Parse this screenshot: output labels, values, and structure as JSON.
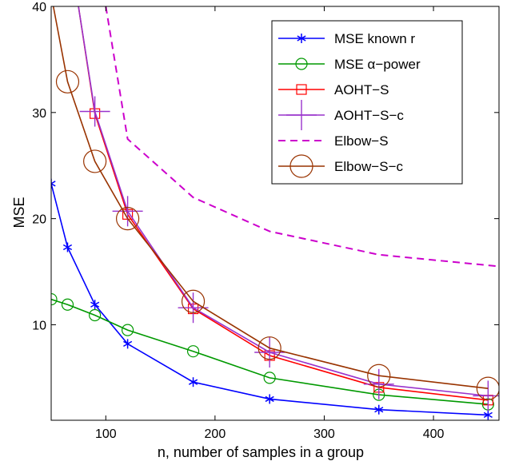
{
  "chart_data": {
    "type": "line",
    "title": "",
    "xlabel": "n, number of samples in a group",
    "ylabel": "MSE",
    "xlim": [
      50,
      460
    ],
    "ylim": [
      1,
      40
    ],
    "xticks": [
      100,
      200,
      300,
      400
    ],
    "yticks": [
      10,
      20,
      30,
      40
    ],
    "grid": false,
    "legend_position": "top-right",
    "x": [
      50,
      65,
      90,
      120,
      180,
      250,
      350,
      450
    ],
    "series": [
      {
        "name": "MSE known r",
        "color": "#0000ff",
        "line_style": "solid",
        "marker": "asterisk",
        "x": [
          50,
          65,
          90,
          120,
          180,
          250,
          350,
          450
        ],
        "values": [
          23.3,
          17.3,
          11.9,
          8.2,
          4.6,
          3.0,
          2.0,
          1.5
        ]
      },
      {
        "name": "MSE α−power",
        "color": "#009900",
        "line_style": "solid",
        "marker": "circle",
        "x": [
          50,
          65,
          90,
          120,
          180,
          250,
          350,
          450
        ],
        "values": [
          12.4,
          11.9,
          10.9,
          9.5,
          7.5,
          5.0,
          3.4,
          2.5
        ]
      },
      {
        "name": "AOHT−S",
        "color": "#ff0000",
        "line_style": "solid",
        "marker": "square",
        "x": [
          75,
          90,
          120,
          180,
          250,
          350,
          450
        ],
        "values": [
          40.0,
          29.9,
          20.4,
          11.5,
          7.1,
          4.1,
          2.9
        ],
        "marker_x": [
          90,
          120,
          180,
          250,
          350,
          450
        ],
        "marker_values": [
          29.9,
          20.4,
          11.5,
          7.1,
          4.1,
          2.9
        ]
      },
      {
        "name": "AOHT−S−c",
        "color": "#9933cc",
        "line_style": "solid",
        "marker": "plus",
        "x": [
          75,
          90,
          120,
          180,
          250,
          350,
          450
        ],
        "values": [
          40.0,
          30.1,
          20.7,
          11.6,
          7.4,
          4.4,
          3.3
        ],
        "marker_x": [
          90,
          120,
          180,
          250,
          350,
          450
        ],
        "marker_values": [
          30.1,
          20.7,
          11.6,
          7.4,
          4.4,
          3.3
        ]
      },
      {
        "name": "Elbow−S",
        "color": "#cc00cc",
        "line_style": "dashed",
        "marker": "none",
        "x": [
          100,
          120,
          180,
          250,
          350,
          460
        ],
        "values": [
          40.0,
          27.5,
          22.0,
          18.8,
          16.6,
          15.5
        ]
      },
      {
        "name": "Elbow−S−c",
        "color": "#993300",
        "line_style": "solid",
        "marker": "circle-large",
        "x": [
          52,
          65,
          90,
          120,
          180,
          250,
          350,
          450
        ],
        "values": [
          40.0,
          32.9,
          25.4,
          20.0,
          12.2,
          7.8,
          5.2,
          4.0
        ],
        "marker_x": [
          65,
          90,
          120,
          180,
          250,
          350,
          450
        ],
        "marker_values": [
          32.9,
          25.4,
          20.0,
          12.2,
          7.8,
          5.2,
          4.0
        ]
      }
    ]
  }
}
